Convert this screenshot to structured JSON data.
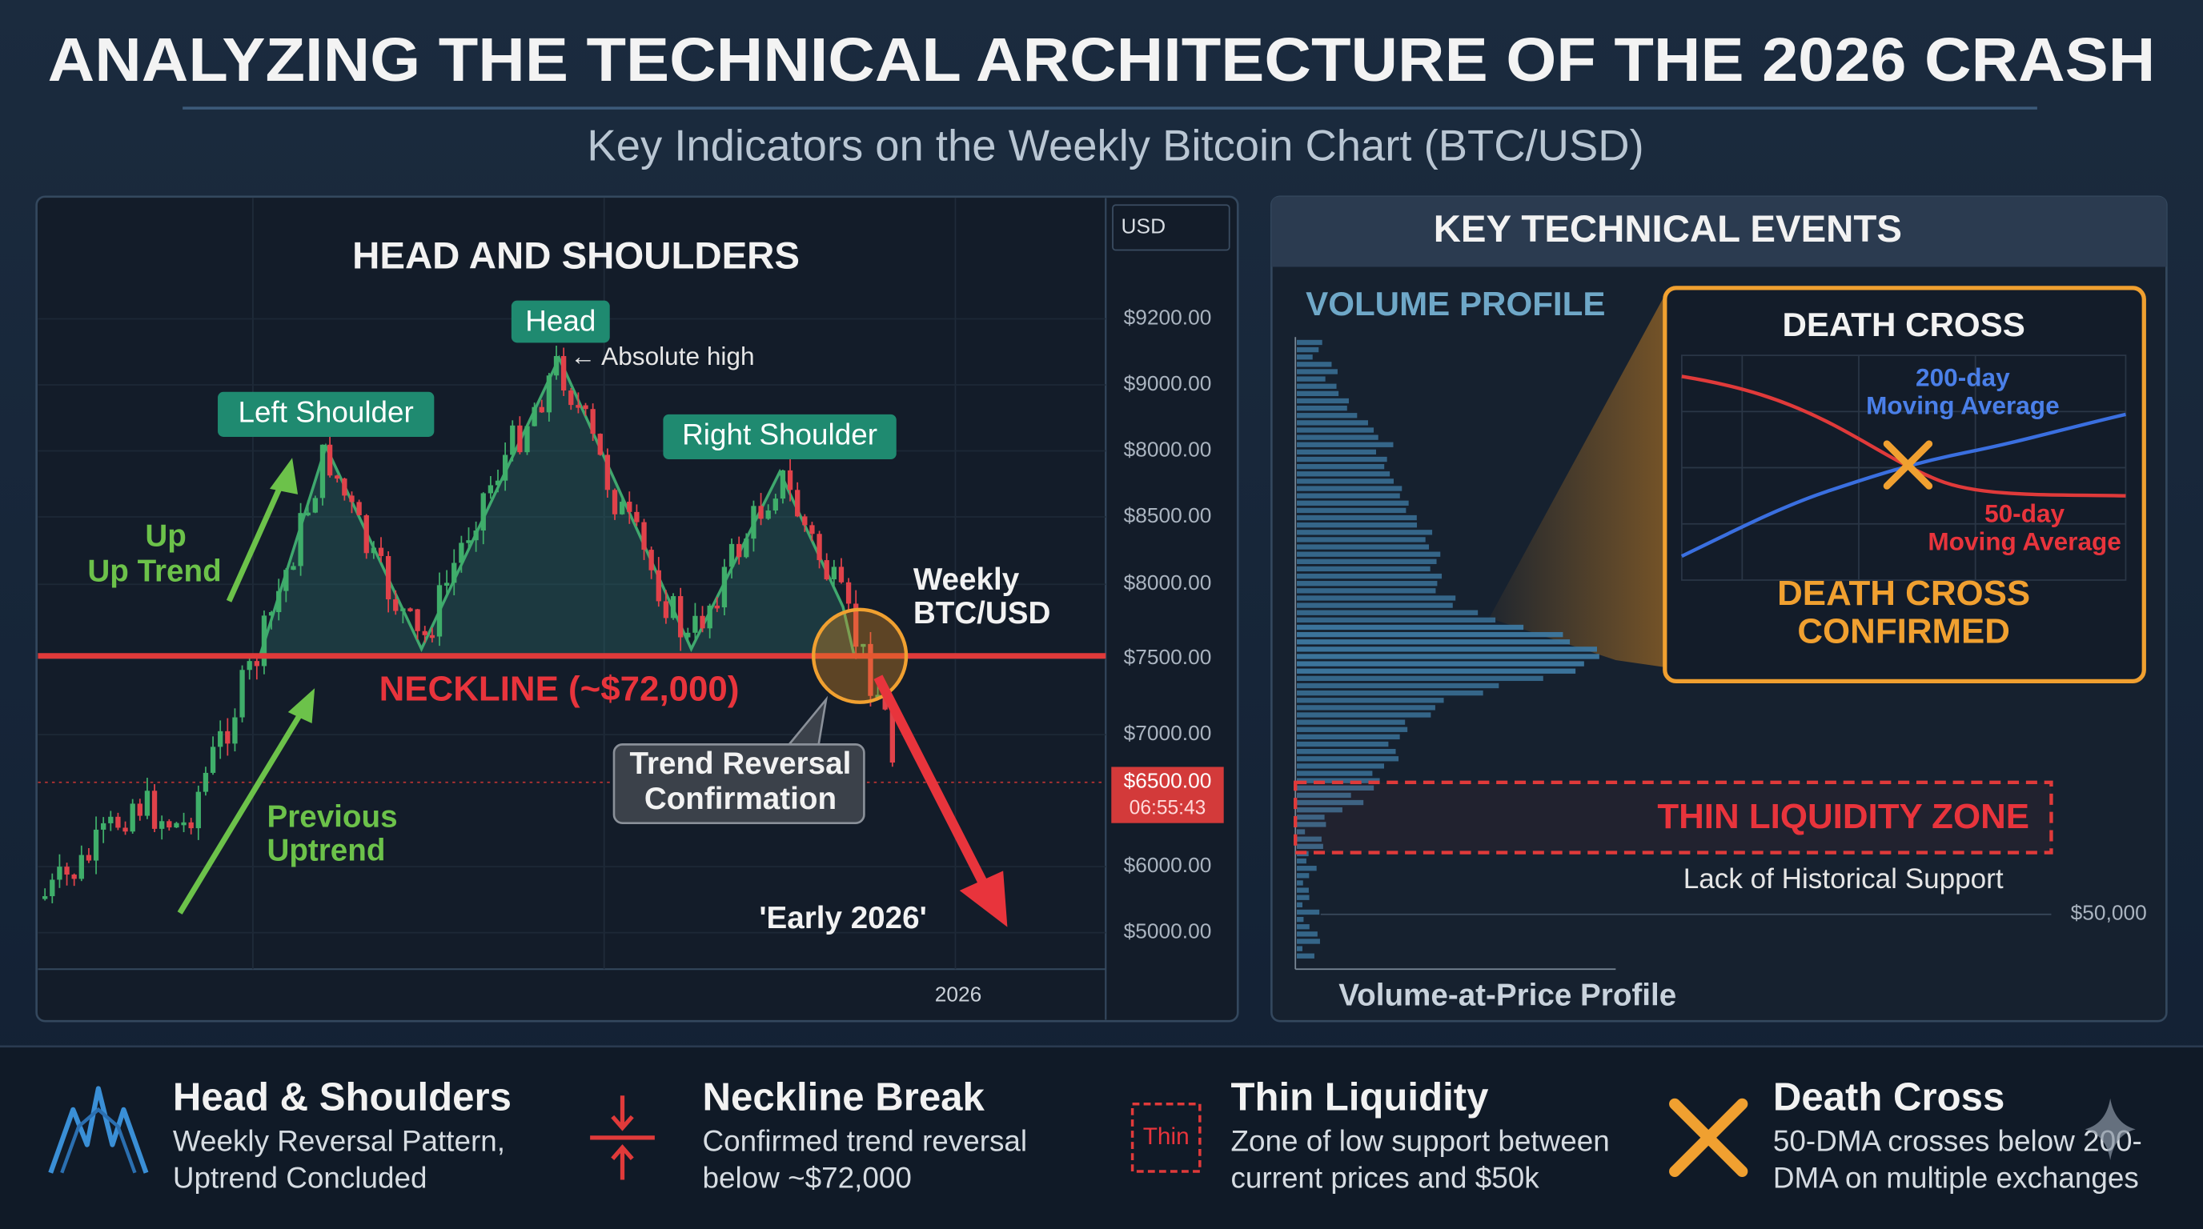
{
  "header": {
    "title": "ANALYZING THE TECHNICAL ARCHITECTURE OF THE 2026 CRASH",
    "subtitle": "Key Indicators on the Weekly Bitcoin Chart (BTC/USD)"
  },
  "left_panel": {
    "title": "HEAD AND SHOULDERS",
    "axis_unit": "USD",
    "price_labels": [
      "$9200.00",
      "$9000.00",
      "$8000.00",
      "$8500.00",
      "$8000.00",
      "$7500.00",
      "$7000.00",
      "$6000.00",
      "$5000.00"
    ],
    "current_price": "$6500.00",
    "countdown": "06:55:43",
    "x_label": "2026",
    "head": "Head",
    "absolute_high": "← Absolute high",
    "left_shoulder": "Left Shoulder",
    "right_shoulder": "Right Shoulder",
    "up_trend": [
      "Up",
      "Up Trend"
    ],
    "weekly": [
      "Weekly",
      "BTC/USD"
    ],
    "neckline": "NECKLINE (~$72,000)",
    "trend_reversal": [
      "Trend Reversal",
      "Confirmation"
    ],
    "previous_uptrend": [
      "Previous",
      "Uptrend"
    ],
    "early_2026": "'Early 2026'"
  },
  "right_panel": {
    "title": "KEY TECHNICAL EVENTS",
    "volume_profile": "VOLUME PROFILE",
    "death_cross": {
      "title": "DEATH CROSS",
      "ma200": [
        "200-day",
        "Moving Average"
      ],
      "ma50": [
        "50-day",
        "Moving Average"
      ],
      "confirmed": [
        "DEATH CROSS",
        "CONFIRMED"
      ]
    },
    "thin_liquidity": "THIN LIQUIDITY ZONE",
    "lack_support": "Lack of Historical Support",
    "level": "$50,000",
    "profile_label": "Volume-at-Price Profile"
  },
  "footer": {
    "items": [
      {
        "title": "Head & Shoulders",
        "lines": [
          "Weekly Reversal Pattern,",
          "Uptrend Concluded"
        ]
      },
      {
        "title": "Neckline Break",
        "lines": [
          "Confirmed trend reversal",
          "below ~$72,000"
        ]
      },
      {
        "title": "Thin Liquidity",
        "lines": [
          "Zone of low support between",
          "current prices and $50k"
        ]
      },
      {
        "title": "Death Cross",
        "lines": [
          "50-DMA crosses below 200-",
          "DMA on multiple exchanges"
        ]
      }
    ],
    "thin_icon": "Thin"
  }
}
